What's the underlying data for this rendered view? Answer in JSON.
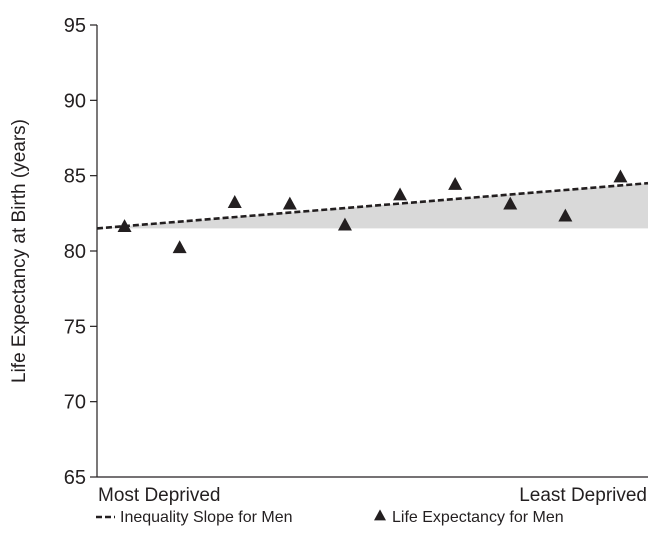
{
  "chart_data": {
    "type": "scatter",
    "title": "",
    "xlabel": "",
    "ylabel": "Life Expectancy at Birth (years)",
    "ylim": [
      65,
      95
    ],
    "yticks": [
      65,
      70,
      75,
      80,
      85,
      90,
      95
    ],
    "xlim": [
      0.5,
      10.5
    ],
    "grid": false,
    "x_end_labels": {
      "left": "Most Deprived",
      "right": "Least Deprived"
    },
    "series": [
      {
        "name": "Life Expectancy for Men",
        "marker": "triangle",
        "color": "#231f20",
        "x": [
          1,
          2,
          3,
          4,
          5,
          6,
          7,
          8,
          9,
          10
        ],
        "y": [
          81.6,
          80.2,
          83.2,
          83.1,
          81.7,
          83.7,
          84.4,
          83.1,
          82.3,
          84.9
        ]
      }
    ],
    "trend_line": {
      "name": "Inequality Slope for Men",
      "style": "dashed",
      "color": "#231f20",
      "x": [
        0.5,
        10.5
      ],
      "y": [
        81.5,
        84.5
      ]
    },
    "shaded_area": {
      "color": "#d9d9d9",
      "baseline": 81.5
    },
    "legend": {
      "placement": "bottom",
      "entries": [
        {
          "symbol": "--",
          "label": "Inequality Slope for Men"
        },
        {
          "symbol": "▲",
          "label": "Life Expectancy for Men"
        }
      ]
    }
  }
}
